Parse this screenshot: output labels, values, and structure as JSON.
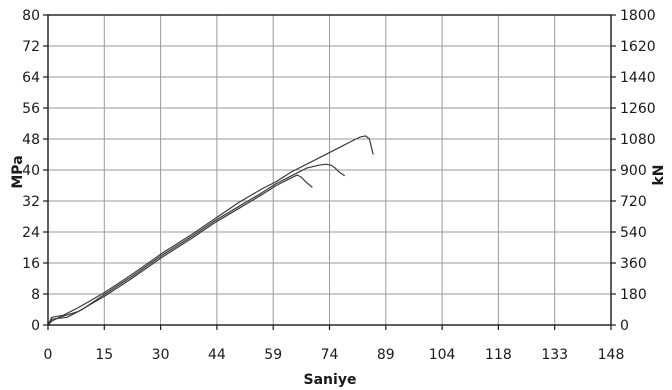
{
  "chart_data": {
    "type": "line",
    "title": "",
    "xlabel": "Saniye",
    "ylabel": "MPa",
    "y2label": "kN",
    "xlim": [
      0,
      148
    ],
    "ylim": [
      0,
      80
    ],
    "y2lim": [
      0,
      1800
    ],
    "grid": true,
    "x_ticks": [
      "0",
      "15",
      "30",
      "44",
      "59",
      "74",
      "89",
      "104",
      "118",
      "133",
      "148"
    ],
    "y_ticks": [
      "0",
      "8",
      "16",
      "24",
      "32",
      "40",
      "48",
      "56",
      "64",
      "72",
      "80"
    ],
    "y2_ticks": [
      "0",
      "180",
      "360",
      "540",
      "720",
      "900",
      "1080",
      "1260",
      "1440",
      "1620",
      "1800"
    ],
    "line_color": "#3a3a3a",
    "grid_color": "#9a9a9a",
    "series": [
      {
        "x": [
          0,
          1,
          4,
          8,
          15,
          22,
          30,
          38,
          44,
          50,
          56,
          60,
          64,
          70,
          76,
          80,
          82,
          83.5,
          84.5,
          85,
          85.5
        ],
        "y": [
          0,
          2,
          2.5,
          4.5,
          8.5,
          13,
          18.5,
          23.5,
          27.5,
          31.5,
          35,
          37,
          39.5,
          42.5,
          45.5,
          47.5,
          48.5,
          48.8,
          48,
          46,
          44
        ]
      },
      {
        "x": [
          0,
          1,
          5,
          9,
          15,
          22,
          30,
          38,
          44,
          50,
          56,
          60,
          64,
          68,
          71,
          73,
          74.5,
          75.5,
          76.5,
          78
        ],
        "y": [
          0,
          1.5,
          2,
          4,
          8,
          12.5,
          18,
          23,
          27,
          30.5,
          34,
          36.5,
          38.5,
          40.5,
          41.2,
          41.5,
          41.2,
          40.5,
          39.5,
          38.5
        ]
      },
      {
        "x": [
          0,
          1,
          3,
          8,
          15,
          22,
          30,
          38,
          44,
          50,
          56,
          60,
          63,
          65.5,
          66.5,
          67.5,
          68.5,
          69.5
        ],
        "y": [
          0,
          1,
          2,
          3.5,
          7.5,
          12,
          17.5,
          22.5,
          26.5,
          30,
          33.5,
          36,
          37.5,
          38.7,
          38.2,
          37.2,
          36.3,
          35.5
        ]
      }
    ]
  }
}
